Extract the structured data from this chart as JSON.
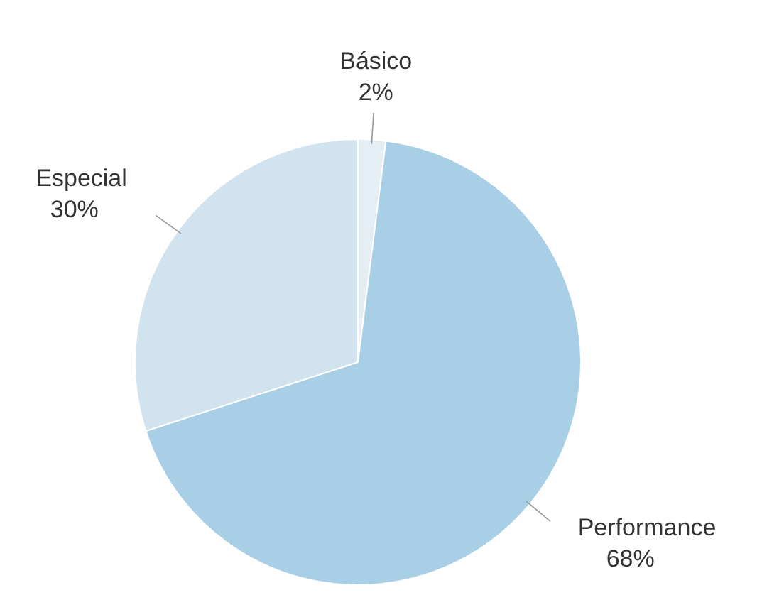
{
  "chart_data": {
    "type": "pie",
    "categories": [
      "Básico",
      "Performance",
      "Especial"
    ],
    "values": [
      2,
      68,
      30
    ],
    "colors": [
      "#e4eef4",
      "#a9cfe6",
      "#d0e3ef"
    ],
    "value_labels": [
      "2%",
      "68%",
      "30%"
    ]
  }
}
